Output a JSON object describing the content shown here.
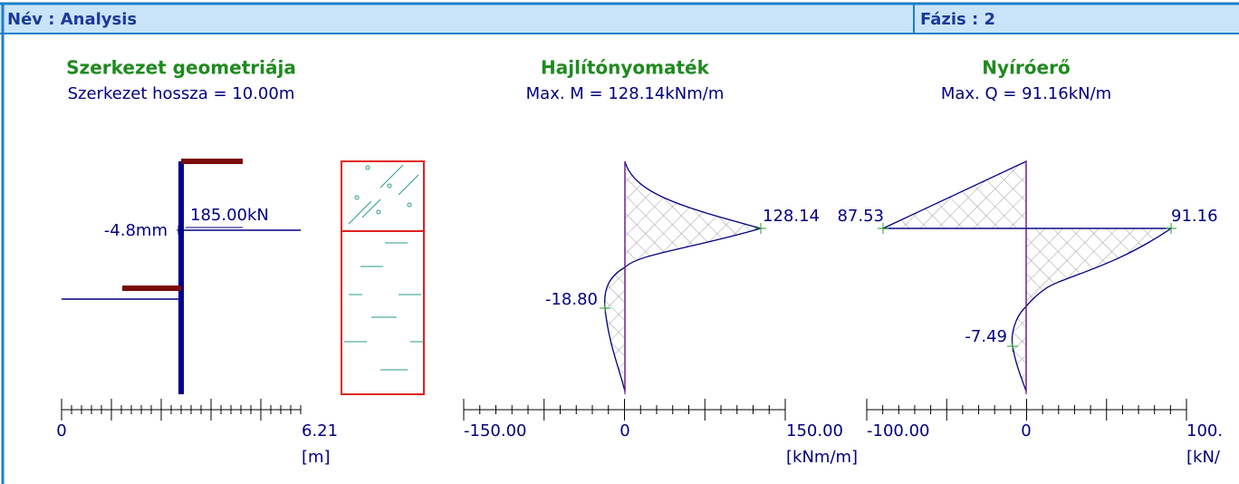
{
  "header": {
    "name": "Név : Analysis",
    "phase": "Fázis : 2"
  },
  "geometry": {
    "title": "Szerkezet geometriája",
    "subtitle": "Szerkezet hossza = 10.00m",
    "displacement": "-4.8mm",
    "force": "185.00kN",
    "axis": {
      "min": "0",
      "max": "6.21",
      "unit": "[m]"
    }
  },
  "moment": {
    "title": "Hajlítónyomaték",
    "subtitle": "Max. M = 128.14kNm/m",
    "max_label": "128.14",
    "min_label": "-18.80",
    "axis": {
      "min": "-150.00",
      "zero": "0",
      "max": "150.00",
      "unit": "[kNm/m]"
    }
  },
  "shear": {
    "title": "Nyíróerő",
    "subtitle": "Max. Q = 91.16kN/m",
    "left_label": "87.53",
    "right_label": "91.16",
    "min_label": "-7.49",
    "axis": {
      "min": "-100.00",
      "zero": "0",
      "max": "100.",
      "unit": "[kN/"
    }
  }
}
